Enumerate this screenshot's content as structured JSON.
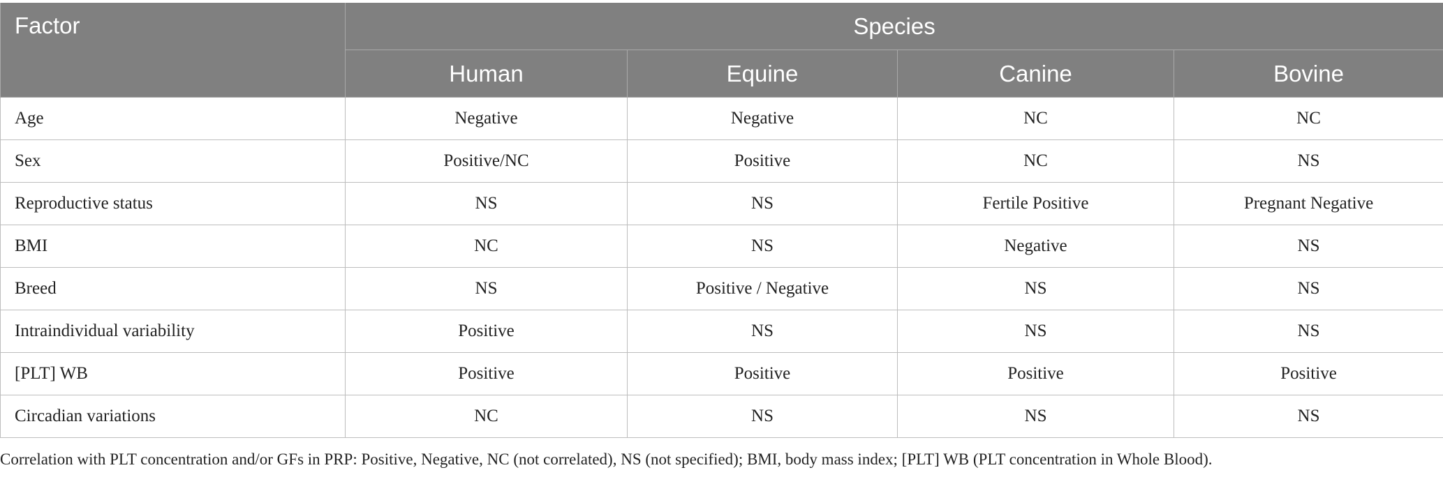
{
  "table": {
    "header": {
      "factor_label": "Factor",
      "species_label": "Species",
      "species": [
        "Human",
        "Equine",
        "Canine",
        "Bovine"
      ]
    },
    "rows": [
      {
        "factor": "Age",
        "values": [
          "Negative",
          "Negative",
          "NC",
          "NC"
        ]
      },
      {
        "factor": "Sex",
        "values": [
          "Positive/NC",
          "Positive",
          "NC",
          "NS"
        ]
      },
      {
        "factor": "Reproductive status",
        "values": [
          "NS",
          "NS",
          "Fertile Positive",
          "Pregnant Negative"
        ]
      },
      {
        "factor": "BMI",
        "values": [
          "NC",
          "NS",
          "Negative",
          "NS"
        ]
      },
      {
        "factor": "Breed",
        "values": [
          "NS",
          "Positive / Negative",
          "NS",
          "NS"
        ]
      },
      {
        "factor": "Intraindividual variability",
        "values": [
          "Positive",
          "NS",
          "NS",
          "NS"
        ]
      },
      {
        "factor": "[PLT] WB",
        "values": [
          "Positive",
          "Positive",
          "Positive",
          "Positive"
        ]
      },
      {
        "factor": "Circadian variations",
        "values": [
          "NC",
          "NS",
          "NS",
          "NS"
        ]
      }
    ]
  },
  "footnote": "Correlation with PLT concentration and/or GFs in PRP: Positive, Negative, NC (not correlated), NS (not specified); BMI, body mass index; [PLT] WB (PLT concentration in Whole Blood).",
  "colors": {
    "header_bg": "#808080",
    "header_text": "#ffffff",
    "grid": "#bdbdbd"
  }
}
